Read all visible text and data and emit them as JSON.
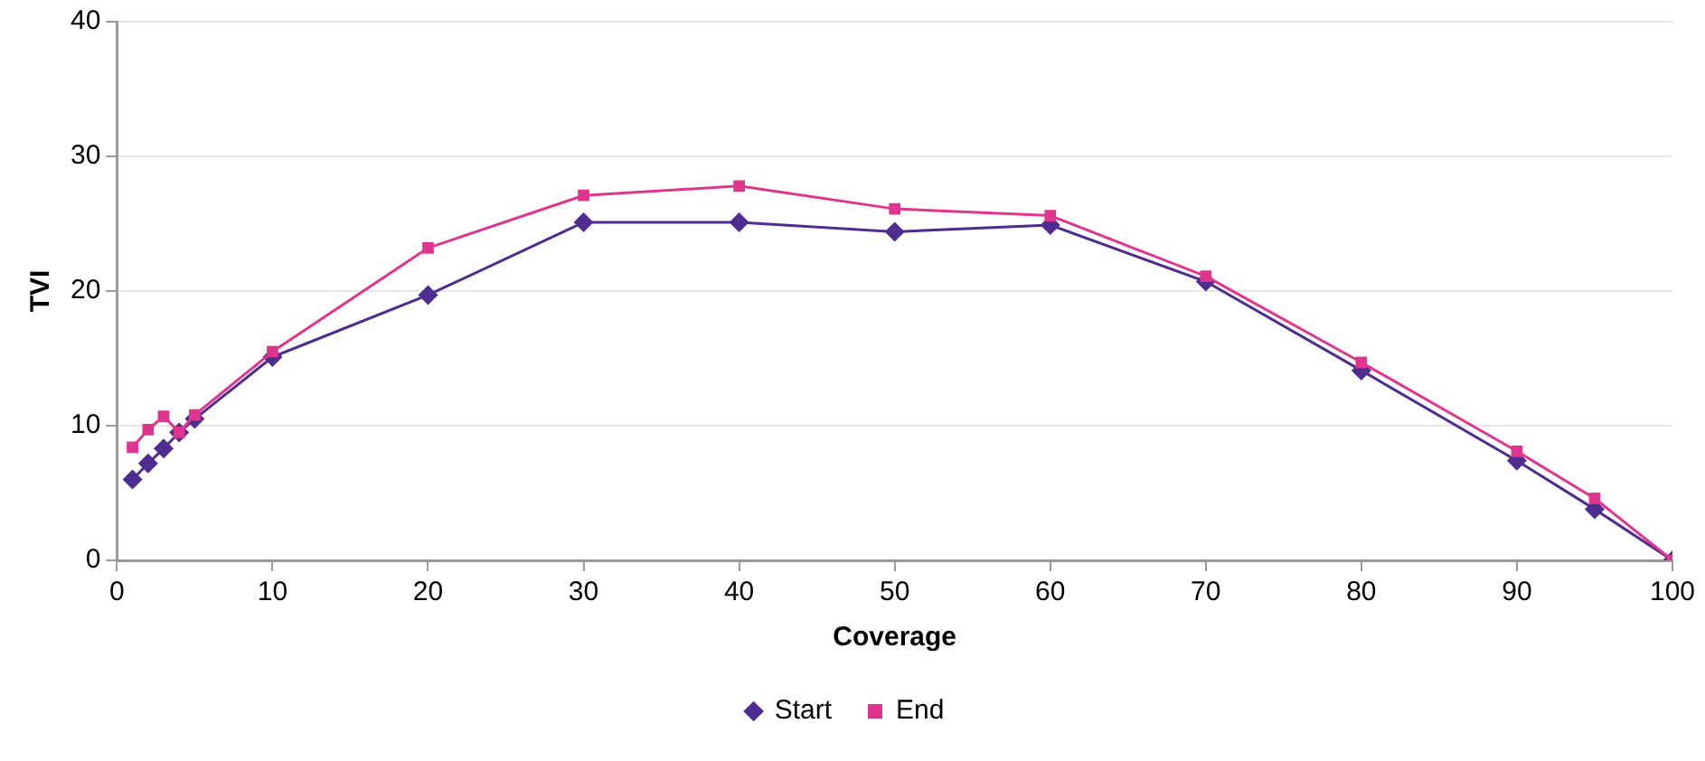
{
  "chart_data": {
    "type": "line",
    "xlabel": "Coverage",
    "ylabel": "TVI",
    "x": [
      1,
      2,
      3,
      4,
      5,
      10,
      20,
      30,
      40,
      50,
      60,
      70,
      80,
      90,
      95,
      100
    ],
    "series": [
      {
        "name": "Start",
        "color": "#4f2c8f",
        "marker": "diamond",
        "values": [
          6.0,
          7.2,
          8.3,
          9.5,
          10.5,
          15.1,
          19.7,
          25.1,
          25.1,
          24.4,
          24.9,
          20.7,
          14.1,
          7.4,
          3.8,
          0
        ]
      },
      {
        "name": "End",
        "color": "#e0358e",
        "marker": "square",
        "values": [
          8.4,
          9.7,
          10.7,
          9.5,
          10.8,
          15.5,
          23.2,
          27.1,
          27.8,
          26.1,
          25.6,
          21.1,
          14.7,
          8.1,
          4.6,
          0
        ]
      }
    ],
    "xlim": [
      0,
      100
    ],
    "xticks": [
      0,
      10,
      20,
      30,
      40,
      50,
      60,
      70,
      80,
      90,
      100
    ],
    "ylim": [
      0,
      40
    ],
    "yticks": [
      0,
      10,
      20,
      30,
      40
    ],
    "grid": "y",
    "legend": "bottom"
  }
}
